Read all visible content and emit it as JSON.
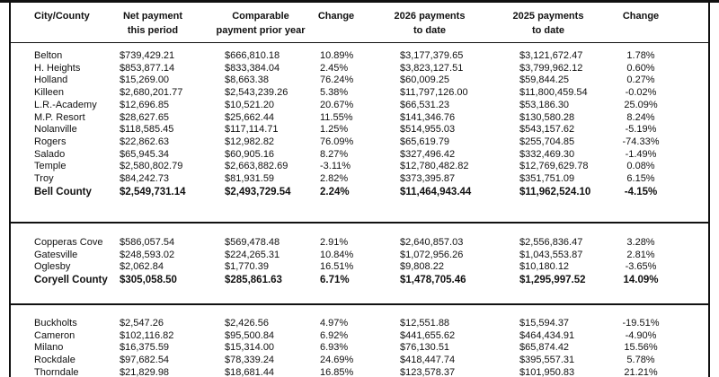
{
  "table": {
    "header": [
      [
        "City/County"
      ],
      [
        "Net payment",
        "this period"
      ],
      [
        "Comparable",
        "payment prior year"
      ],
      [
        "Change"
      ],
      [
        "2026 payments",
        "to date"
      ],
      [
        "2025 payments",
        "to date"
      ],
      [
        "Change"
      ]
    ],
    "sections": [
      {
        "rows": [
          [
            "Belton",
            "$739,429.21",
            "$666,810.18",
            "10.89%",
            "$3,177,379.65",
            "$3,121,672.47",
            "1.78%"
          ],
          [
            "H. Heights",
            "$853,877.14",
            "$833,384.04",
            "2.45%",
            "$3,823,127.51",
            "$3,799,962.12",
            "0.60%"
          ],
          [
            "Holland",
            "$15,269.00",
            "$8,663.38",
            "76.24%",
            "$60,009.25",
            "$59,844.25",
            "0.27%"
          ],
          [
            "Killeen",
            "$2,680,201.77",
            "$2,543,239.26",
            "5.38%",
            "$11,797,126.00",
            "$11,800,459.54",
            "-0.02%"
          ],
          [
            "L.R.-Academy",
            "$12,696.85",
            "$10,521.20",
            "20.67%",
            "$66,531.23",
            "$53,186.30",
            "25.09%"
          ],
          [
            "M.P. Resort",
            "$28,627.65",
            "$25,662.44",
            "11.55%",
            "$141,346.76",
            "$130,580.28",
            "8.24%"
          ],
          [
            "Nolanville",
            "$118,585.45",
            "$117,114.71",
            "1.25%",
            "$514,955.03",
            "$543,157.62",
            "-5.19%"
          ],
          [
            "Rogers",
            "$22,862.63",
            "$12,982.82",
            "76.09%",
            "$65,619.79",
            "$255,704.85",
            "-74.33%"
          ],
          [
            "Salado",
            "$65,945.34",
            "$60,905.16",
            "8.27%",
            "$327,496.42",
            "$332,469.30",
            "-1.49%"
          ],
          [
            "Temple",
            "$2,580,802.79",
            "$2,663,882.69",
            "-3.11%",
            "$12,780,482.82",
            "$12,769,629.78",
            "0.08%"
          ],
          [
            "Troy",
            "$84,242.73",
            "$81,931.59",
            "2.82%",
            "$373,395.87",
            "$351,751.09",
            "6.15%"
          ]
        ],
        "total": [
          "Bell County",
          "$2,549,731.14",
          "$2,493,729.54",
          "2.24%",
          "$11,464,943.44",
          "$11,962,524.10",
          "-4.15%"
        ]
      },
      {
        "rows": [
          [
            "Copperas Cove",
            "$586,057.54",
            "$569,478.48",
            "2.91%",
            "$2,640,857.03",
            "$2,556,836.47",
            "3.28%"
          ],
          [
            "Gatesville",
            "$248,593.02",
            "$224,265.31",
            "10.84%",
            "$1,072,956.26",
            "$1,043,553.87",
            "2.81%"
          ],
          [
            "Oglesby",
            "$2,062.84",
            "$1,770.39",
            "16.51%",
            "$9,808.22",
            "$10,180.12",
            "-3.65%"
          ]
        ],
        "total": [
          "Coryell County",
          "$305,058.50",
          "$285,861.63",
          "6.71%",
          "$1,478,705.46",
          "$1,295,997.52",
          "14.09%"
        ]
      },
      {
        "rows": [
          [
            "Buckholts",
            "$2,547.26",
            "$2,426.56",
            "4.97%",
            "$12,551.88",
            "$15,594.37",
            "-19.51%"
          ],
          [
            "Cameron",
            "$102,116.82",
            "$95,500.84",
            "6.92%",
            "$441,655.62",
            "$464,434.91",
            "-4.90%"
          ],
          [
            "Milano",
            "$16,375.59",
            "$15,314.00",
            "6.93%",
            "$76,130.51",
            "$65,874.42",
            "15.56%"
          ],
          [
            "Rockdale",
            "$97,682.54",
            "$78,339.24",
            "24.69%",
            "$418,447.74",
            "$395,557.31",
            "5.78%"
          ],
          [
            "Thorndale",
            "$21,829.98",
            "$18,681.44",
            "16.85%",
            "$123,578.37",
            "$101,950.83",
            "21.21%"
          ]
        ]
      }
    ]
  }
}
